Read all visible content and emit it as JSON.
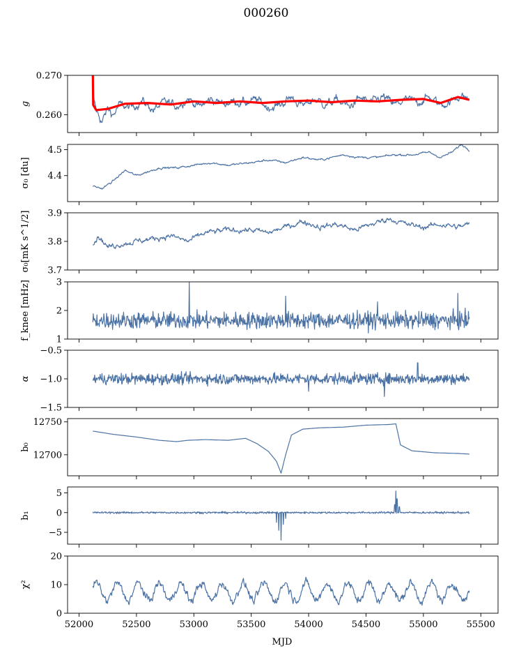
{
  "title": "000260",
  "xlabel": "MJD",
  "x_ticks": [
    52000,
    52500,
    53000,
    53500,
    54000,
    54500,
    55000,
    55500
  ],
  "chart_data": [
    {
      "type": "line",
      "ylabel": "g",
      "xlim": [
        51900,
        55650
      ],
      "ylim": [
        0.2555,
        0.27
      ],
      "y_ticks": [
        0.26,
        0.27
      ],
      "y_tick_labels": [
        "0.260",
        "0.270"
      ],
      "series": [
        {
          "kind": "raw",
          "color": "#4c72a4",
          "x_start": 52120,
          "x_end": 55400,
          "points": [
            [
              52120,
              0.2645
            ],
            [
              52150,
              0.261
            ],
            [
              52200,
              0.2582
            ],
            [
              52250,
              0.2615
            ],
            [
              52300,
              0.26
            ],
            [
              52350,
              0.2625
            ],
            [
              52450,
              0.2618
            ],
            [
              52550,
              0.2635
            ],
            [
              52650,
              0.2612
            ],
            [
              52750,
              0.2632
            ],
            [
              52850,
              0.2622
            ],
            [
              52950,
              0.2642
            ],
            [
              53050,
              0.262
            ],
            [
              53150,
              0.264
            ],
            [
              53250,
              0.2628
            ],
            [
              53350,
              0.2635
            ],
            [
              53450,
              0.263
            ],
            [
              53550,
              0.2638
            ],
            [
              53650,
              0.2618
            ],
            [
              53750,
              0.2625
            ],
            [
              53850,
              0.2645
            ],
            [
              53950,
              0.2622
            ],
            [
              54050,
              0.264
            ],
            [
              54150,
              0.2626
            ],
            [
              54250,
              0.2638
            ],
            [
              54350,
              0.262
            ],
            [
              54450,
              0.2642
            ],
            [
              54550,
              0.263
            ],
            [
              54650,
              0.2645
            ],
            [
              54750,
              0.2625
            ],
            [
              54850,
              0.2638
            ],
            [
              54950,
              0.2632
            ],
            [
              55050,
              0.2645
            ],
            [
              55150,
              0.2625
            ],
            [
              55250,
              0.2635
            ],
            [
              55320,
              0.265
            ],
            [
              55400,
              0.2638
            ]
          ],
          "noise": 0.0008
        },
        {
          "kind": "fit",
          "color": "#ff0000",
          "points": [
            [
              52120,
              0.27
            ],
            [
              52123,
              0.2625
            ],
            [
              52150,
              0.2612
            ],
            [
              52250,
              0.2615
            ],
            [
              52400,
              0.2628
            ],
            [
              52600,
              0.263
            ],
            [
              52800,
              0.2626
            ],
            [
              53000,
              0.2634
            ],
            [
              53200,
              0.263
            ],
            [
              53400,
              0.2634
            ],
            [
              53600,
              0.263
            ],
            [
              53800,
              0.2634
            ],
            [
              54000,
              0.2636
            ],
            [
              54200,
              0.2632
            ],
            [
              54400,
              0.2636
            ],
            [
              54600,
              0.2634
            ],
            [
              54800,
              0.2638
            ],
            [
              55000,
              0.264
            ],
            [
              55150,
              0.263
            ],
            [
              55300,
              0.2645
            ],
            [
              55400,
              0.2638
            ]
          ]
        }
      ]
    },
    {
      "type": "line",
      "ylabel": "σ₀ [du]",
      "xlim": [
        51900,
        55650
      ],
      "ylim": [
        4.3,
        4.52
      ],
      "y_ticks": [
        4.4,
        4.5
      ],
      "y_tick_labels": [
        "4.4",
        "4.5"
      ],
      "series": [
        {
          "kind": "raw",
          "color": "#4c72a4",
          "points": [
            [
              52120,
              4.36
            ],
            [
              52200,
              4.35
            ],
            [
              52300,
              4.38
            ],
            [
              52400,
              4.42
            ],
            [
              52500,
              4.4
            ],
            [
              52700,
              4.43
            ],
            [
              52850,
              4.43
            ],
            [
              53000,
              4.44
            ],
            [
              53150,
              4.45
            ],
            [
              53300,
              4.44
            ],
            [
              53500,
              4.45
            ],
            [
              53650,
              4.46
            ],
            [
              53800,
              4.45
            ],
            [
              53950,
              4.47
            ],
            [
              54100,
              4.46
            ],
            [
              54300,
              4.48
            ],
            [
              54450,
              4.47
            ],
            [
              54600,
              4.47
            ],
            [
              54750,
              4.48
            ],
            [
              54900,
              4.48
            ],
            [
              55050,
              4.49
            ],
            [
              55150,
              4.47
            ],
            [
              55250,
              4.49
            ],
            [
              55330,
              4.52
            ],
            [
              55400,
              4.5
            ]
          ],
          "noise": 0.003
        }
      ]
    },
    {
      "type": "line",
      "ylabel": "σ₀[mK s^1/2]",
      "xlim": [
        51900,
        55650
      ],
      "ylim": [
        3.7,
        3.9
      ],
      "y_ticks": [
        3.7,
        3.8,
        3.9
      ],
      "y_tick_labels": [
        "3.7",
        "3.8",
        "3.9"
      ],
      "series": [
        {
          "kind": "raw",
          "color": "#4c72a4",
          "points": [
            [
              52120,
              3.79
            ],
            [
              52170,
              3.82
            ],
            [
              52250,
              3.78
            ],
            [
              52350,
              3.79
            ],
            [
              52500,
              3.8
            ],
            [
              52650,
              3.81
            ],
            [
              52800,
              3.82
            ],
            [
              52950,
              3.8
            ],
            [
              53100,
              3.83
            ],
            [
              53300,
              3.84
            ],
            [
              53500,
              3.84
            ],
            [
              53650,
              3.83
            ],
            [
              53800,
              3.85
            ],
            [
              53950,
              3.87
            ],
            [
              54100,
              3.85
            ],
            [
              54250,
              3.86
            ],
            [
              54400,
              3.84
            ],
            [
              54550,
              3.86
            ],
            [
              54700,
              3.88
            ],
            [
              54850,
              3.86
            ],
            [
              55000,
              3.85
            ],
            [
              55150,
              3.86
            ],
            [
              55300,
              3.85
            ],
            [
              55400,
              3.86
            ]
          ],
          "noise": 0.007
        }
      ]
    },
    {
      "type": "line",
      "ylabel": "f_knee [mHz]",
      "xlim": [
        51900,
        55650
      ],
      "ylim": [
        1,
        3
      ],
      "y_ticks": [
        1,
        2,
        3
      ],
      "y_tick_labels": [
        "1",
        "2",
        "3"
      ],
      "series": [
        {
          "kind": "noise",
          "color": "#4c72a4",
          "x_start": 52120,
          "x_end": 55400,
          "mean": 1.65,
          "amp": 0.3,
          "spikes": [
            [
              52960,
              3.0
            ],
            [
              54600,
              2.3
            ],
            [
              55300,
              2.6
            ],
            [
              53800,
              2.5
            ]
          ]
        }
      ]
    },
    {
      "type": "line",
      "ylabel": "α",
      "xlim": [
        51900,
        55650
      ],
      "ylim": [
        -1.5,
        -0.5
      ],
      "y_ticks": [
        -1.5,
        -1.0,
        -0.5
      ],
      "y_tick_labels": [
        "−1.5",
        "−1.0",
        "−0.5"
      ],
      "series": [
        {
          "kind": "noise",
          "color": "#4c72a4",
          "x_start": 52120,
          "x_end": 55400,
          "mean": -1.0,
          "amp": 0.1,
          "spikes": [
            [
              54660,
              -1.31
            ],
            [
              54950,
              -0.72
            ],
            [
              54000,
              -1.22
            ]
          ]
        }
      ]
    },
    {
      "type": "line",
      "ylabel": "b₀",
      "xlim": [
        51900,
        55650
      ],
      "ylim": [
        12668,
        12755
      ],
      "y_ticks": [
        12700,
        12750
      ],
      "y_tick_labels": [
        "12700",
        "12750"
      ],
      "series": [
        {
          "kind": "raw",
          "color": "#4c72a4",
          "points": [
            [
              52120,
              12736
            ],
            [
              52300,
              12731
            ],
            [
              52500,
              12727
            ],
            [
              52700,
              12722
            ],
            [
              52850,
              12720
            ],
            [
              52950,
              12722
            ],
            [
              53100,
              12723
            ],
            [
              53300,
              12722
            ],
            [
              53450,
              12725
            ],
            [
              53550,
              12717
            ],
            [
              53650,
              12705
            ],
            [
              53720,
              12690
            ],
            [
              53760,
              12672
            ],
            [
              53800,
              12700
            ],
            [
              53850,
              12730
            ],
            [
              53950,
              12739
            ],
            [
              54100,
              12741
            ],
            [
              54300,
              12742
            ],
            [
              54500,
              12745
            ],
            [
              54700,
              12746
            ],
            [
              54760,
              12747
            ],
            [
              54800,
              12715
            ],
            [
              54900,
              12706
            ],
            [
              55100,
              12703
            ],
            [
              55300,
              12702
            ],
            [
              55400,
              12701
            ]
          ],
          "noise": 0
        }
      ]
    },
    {
      "type": "line",
      "ylabel": "b₁",
      "xlim": [
        51900,
        55650
      ],
      "ylim": [
        -8,
        6.5
      ],
      "y_ticks": [
        -5,
        0,
        5
      ],
      "y_tick_labels": [
        "−5",
        "0",
        "5"
      ],
      "series": [
        {
          "kind": "noise",
          "color": "#4c72a4",
          "x_start": 52120,
          "x_end": 55400,
          "mean": 0,
          "amp": 0.25,
          "spikes": [
            [
              53720,
              -2.5
            ],
            [
              53740,
              -4.5
            ],
            [
              53760,
              -7.0
            ],
            [
              53780,
              -3.0
            ],
            [
              53800,
              -1.5
            ],
            [
              54750,
              2.0
            ],
            [
              54760,
              5.5
            ],
            [
              54770,
              3.5
            ],
            [
              54790,
              1.5
            ]
          ]
        }
      ]
    },
    {
      "type": "line",
      "ylabel": "χ²",
      "xlim": [
        51900,
        55650
      ],
      "ylim": [
        0,
        20
      ],
      "y_ticks": [
        0,
        10,
        20
      ],
      "y_tick_labels": [
        "0",
        "10",
        "20"
      ],
      "series": [
        {
          "kind": "seasonal",
          "color": "#4c72a4",
          "x_start": 52120,
          "x_end": 55400,
          "mean": 7.5,
          "amp": 3.0,
          "period": 182.6,
          "phase": 0.5,
          "noise": 1.2
        }
      ]
    }
  ]
}
